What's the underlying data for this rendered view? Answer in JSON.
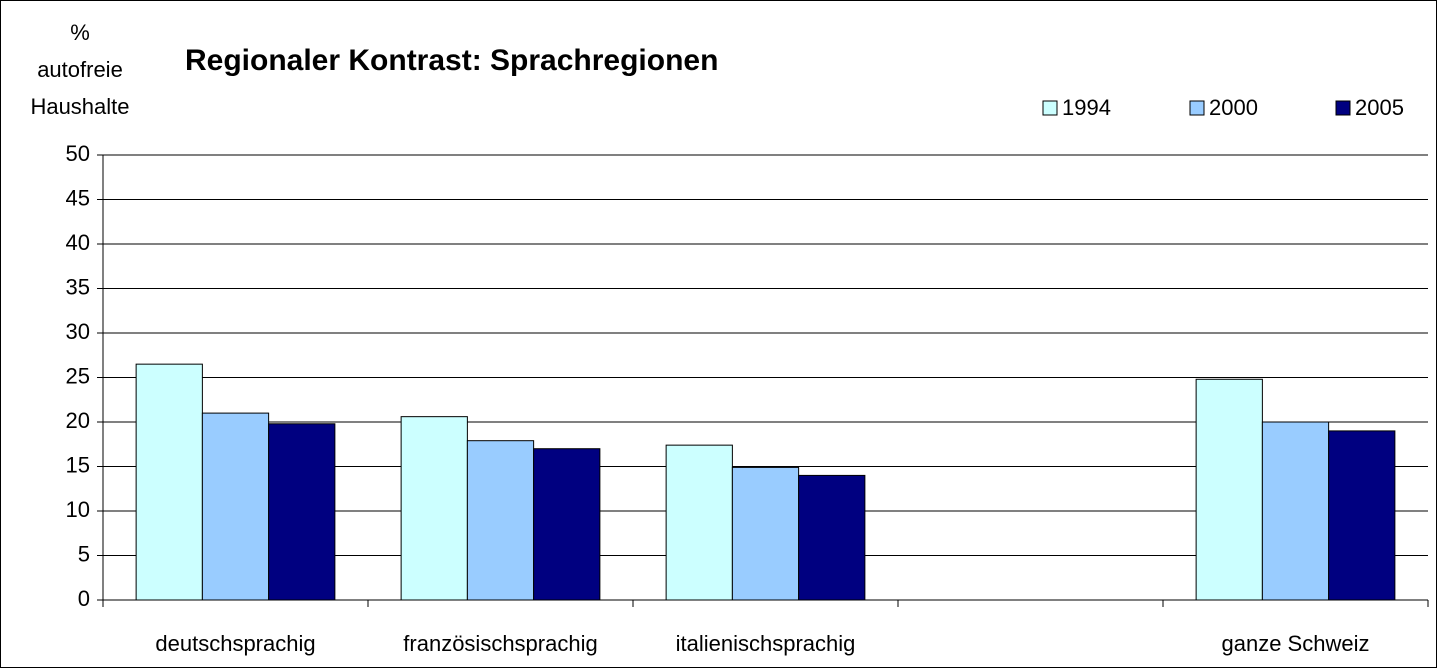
{
  "chart_data": {
    "type": "bar",
    "title": "Regionaler Kontrast: Sprachregionen",
    "y_label": [
      "%",
      "autofreie",
      "Haushalte"
    ],
    "categories": [
      "deutschsprachig",
      "französischsprachig",
      "italienischsprachig",
      null,
      "ganze Schweiz"
    ],
    "series": [
      {
        "name": "1994",
        "color": "#ccffff",
        "values": [
          26.5,
          20.6,
          17.4,
          null,
          24.8
        ]
      },
      {
        "name": "2000",
        "color": "#99ccff",
        "values": [
          21.0,
          17.9,
          14.9,
          null,
          20.0
        ]
      },
      {
        "name": "2005",
        "color": "#000080",
        "values": [
          19.8,
          17.0,
          14.0,
          null,
          19.0
        ]
      }
    ],
    "ylim": [
      0,
      50
    ],
    "yticks": [
      0,
      5,
      10,
      15,
      20,
      25,
      30,
      35,
      40,
      45,
      50
    ],
    "grid": true,
    "legend": "top-right"
  }
}
